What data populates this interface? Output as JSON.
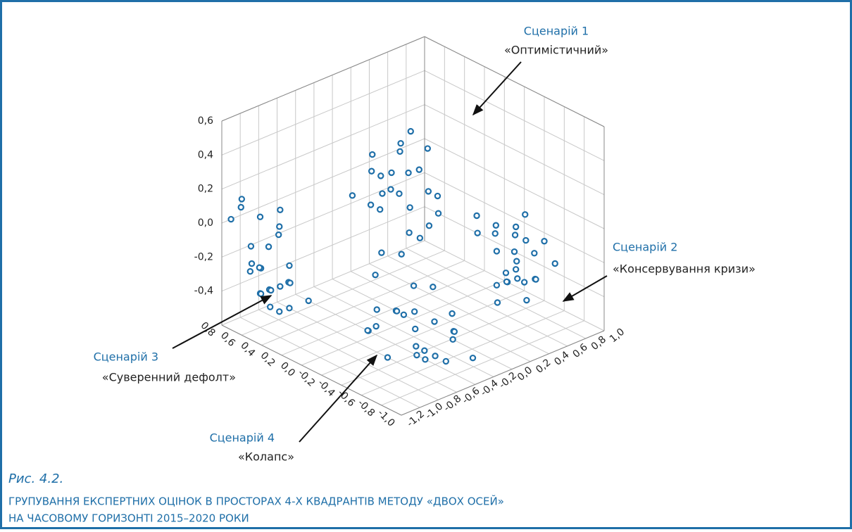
{
  "chart_data": {
    "type": "scatter3d",
    "figure_label": "Рис. 4.2.",
    "title": [
      "ГРУПУВАННЯ ЕКСПЕРТНИХ ОЦІНОК В ПРОСТОРАХ 4-Х КВАДРАНТІВ МЕТОДУ «ДВОХ ОСЕЙ»",
      "НА ЧАСОВОМУ ГОРИЗОНТІ 2015–2020 РОКИ"
    ],
    "annotations": [
      {
        "title": "Сценарій 1",
        "label": "«Оптимістичний»"
      },
      {
        "title": "Сценарій 2",
        "label": "«Консервування кризи»"
      },
      {
        "title": "Сценарій 3",
        "label": "«Суверенний дефолт»"
      },
      {
        "title": "Сценарій 4",
        "label": "«Колапс»"
      }
    ],
    "color": "#1f6fa8",
    "grid": true,
    "xlim": [
      -1.0,
      0.8
    ],
    "ylim": [
      -1.2,
      1.0
    ],
    "zlim": [
      -0.6,
      0.6
    ],
    "xticks": [
      {
        "value": -1.0,
        "label": "-1,0"
      },
      {
        "value": -0.8,
        "label": "-0,8"
      },
      {
        "value": -0.6,
        "label": "-0,6"
      },
      {
        "value": -0.4,
        "label": "-0,4"
      },
      {
        "value": -0.2,
        "label": "-0,2"
      },
      {
        "value": 0.0,
        "label": "0,0"
      },
      {
        "value": 0.2,
        "label": "0,2"
      },
      {
        "value": 0.4,
        "label": "0,4"
      },
      {
        "value": 0.6,
        "label": "0,6"
      },
      {
        "value": 0.8,
        "label": "0,8"
      }
    ],
    "yticks": [
      {
        "value": -1.2,
        "label": "-1,2"
      },
      {
        "value": -1.0,
        "label": "-1,0"
      },
      {
        "value": -0.8,
        "label": "-0,8"
      },
      {
        "value": -0.6,
        "label": "-0,6"
      },
      {
        "value": -0.4,
        "label": "-0,4"
      },
      {
        "value": -0.2,
        "label": "-0,2"
      },
      {
        "value": 0.0,
        "label": "0,0"
      },
      {
        "value": 0.2,
        "label": "0,2"
      },
      {
        "value": 0.4,
        "label": "0,4"
      },
      {
        "value": 0.6,
        "label": "0,6"
      },
      {
        "value": 0.8,
        "label": "0,8"
      },
      {
        "value": 1.0,
        "label": "1,0"
      }
    ],
    "zticks": [
      {
        "value": -0.4,
        "label": "-0,4"
      },
      {
        "value": -0.2,
        "label": "-0,2"
      },
      {
        "value": 0.0,
        "label": "0,0"
      },
      {
        "value": 0.2,
        "label": "0,2"
      },
      {
        "value": 0.4,
        "label": "0,4"
      },
      {
        "value": 0.6,
        "label": "0,6"
      }
    ],
    "x": [
      0.4,
      0.5,
      0.6,
      0.7,
      0.5,
      0.4,
      0.6,
      0.3,
      0.5,
      0.7,
      0.6,
      0.4,
      0.5,
      0.3,
      0.6,
      0.5,
      0.7,
      0.4,
      0.6,
      0.5,
      0.8,
      0.7,
      0.6,
      0.4,
      0.5,
      -0.4,
      -0.3,
      -0.5,
      -0.2,
      -0.6,
      -0.4,
      -0.3,
      -0.5,
      -0.1,
      -0.7,
      -0.4,
      -0.2,
      -0.6,
      -0.3,
      -0.5,
      0.0,
      -0.4,
      -0.8,
      -0.2,
      -0.3,
      -0.5,
      -0.6,
      -0.1,
      -0.4,
      -0.7,
      0.3,
      0.4,
      0.2,
      0.5,
      0.3,
      0.4,
      0.6,
      0.2,
      0.3,
      0.5,
      0.4,
      0.3,
      0.2,
      0.5,
      0.4,
      0.3,
      0.6,
      0.4,
      0.2,
      0.3,
      0.5,
      0.4,
      0.3,
      0.2,
      0.6,
      -0.3,
      -0.2,
      -0.4,
      -0.1,
      -0.5,
      -0.3,
      -0.2,
      -0.4,
      0.0,
      -0.3,
      -0.6,
      -0.1,
      -0.2,
      -0.4,
      -0.3,
      -0.5,
      -0.2,
      0.0,
      -0.4,
      -0.3,
      -0.1,
      -0.5,
      -0.2,
      -0.3,
      -0.4
    ],
    "y": [
      -1.0,
      -1.1,
      -0.9,
      -1.0,
      -0.8,
      -0.9,
      -1.1,
      -1.0,
      -0.9,
      -0.8,
      -1.0,
      -1.1,
      -1.2,
      -0.8,
      -0.8,
      -1.0,
      -1.1,
      -0.9,
      -1.0,
      -1.1,
      -1.1,
      -0.9,
      -1.2,
      -1.0,
      -0.9,
      -0.4,
      -0.3,
      -0.5,
      -0.6,
      -0.2,
      -0.7,
      -0.1,
      -0.4,
      -0.5,
      -0.3,
      0.0,
      -0.2,
      -0.6,
      -0.8,
      -0.1,
      -0.4,
      -0.3,
      -0.5,
      -0.7,
      -0.5,
      -0.3,
      -0.4,
      -0.2,
      -0.6,
      -0.1,
      0.3,
      0.2,
      0.4,
      0.1,
      0.5,
      0.3,
      0.2,
      0.1,
      0.0,
      0.4,
      0.6,
      0.2,
      0.3,
      0.5,
      0.1,
      0.4,
      0.3,
      0.0,
      0.2,
      0.6,
      0.2,
      0.4,
      0.1,
      0.5,
      0.0,
      0.8,
      0.7,
      0.9,
      0.8,
      0.7,
      1.0,
      0.9,
      0.6,
      0.7,
      0.6,
      0.9,
      1.0,
      0.8,
      0.8,
      0.9,
      0.6,
      0.7,
      0.9,
      1.0,
      0.7,
      0.6,
      0.8,
      1.0,
      0.8,
      0.7
    ],
    "z": [
      -0.3,
      -0.2,
      -0.4,
      -0.3,
      -0.35,
      -0.45,
      -0.1,
      -0.25,
      0.0,
      -0.2,
      -0.4,
      -0.3,
      -0.15,
      -0.4,
      -0.1,
      -0.45,
      0.1,
      -0.2,
      0.05,
      -0.35,
      0.0,
      -0.3,
      0.2,
      0.15,
      -0.5,
      -0.45,
      -0.4,
      -0.5,
      -0.35,
      -0.45,
      -0.55,
      -0.3,
      -0.6,
      -0.5,
      -0.4,
      -0.45,
      -0.3,
      -0.5,
      -0.4,
      -0.55,
      -0.25,
      -0.6,
      -0.5,
      -0.45,
      -0.35,
      -0.4,
      -0.55,
      -0.5,
      -0.3,
      -0.6,
      -0.1,
      0.0,
      -0.2,
      0.1,
      -0.05,
      0.2,
      -0.15,
      -0.3,
      0.05,
      -0.1,
      0.15,
      0.3,
      -0.25,
      0.0,
      -0.35,
      0.1,
      -0.2,
      0.25,
      0.4,
      -0.1,
      0.05,
      -0.3,
      0.15,
      -0.15,
      -0.05,
      -0.4,
      -0.3,
      -0.45,
      -0.2,
      -0.5,
      -0.35,
      -0.25,
      -0.4,
      -0.15,
      -0.55,
      -0.3,
      -0.4,
      -0.45,
      -0.2,
      -0.1,
      -0.35,
      -0.5,
      -0.3,
      -0.25,
      -0.45,
      -0.2,
      -0.4,
      -0.55,
      -0.15,
      -0.3
    ]
  }
}
